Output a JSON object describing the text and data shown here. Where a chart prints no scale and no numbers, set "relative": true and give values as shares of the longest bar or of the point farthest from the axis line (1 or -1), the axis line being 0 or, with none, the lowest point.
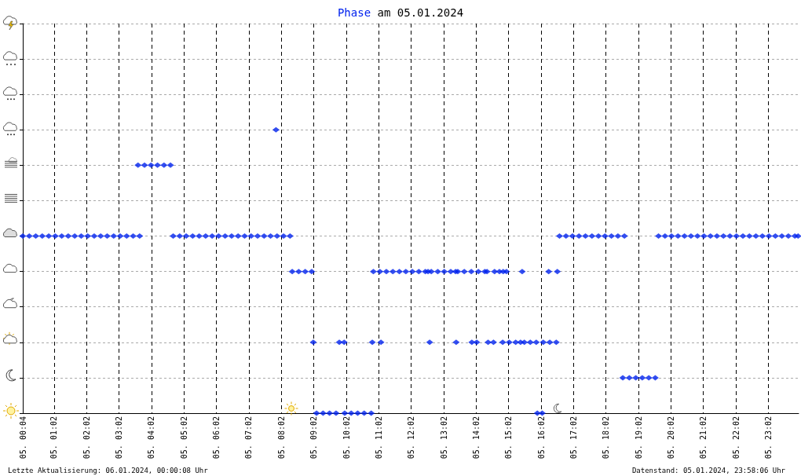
{
  "chart_data": {
    "type": "scatter",
    "title": "Phase am 05.01.2024",
    "annotations": [
      "Letzte Aktualisierung: 06.01.2024, 00:00:08 Uhr",
      "Datenstand: 05.01.2024, 23:58:06 Uhr"
    ],
    "x": [
      "2024-01-05T00:04",
      "2024-01-05T00:16",
      "2024-01-05T00:28",
      "2024-01-05T00:40",
      "2024-01-05T00:52",
      "2024-01-05T01:04",
      "2024-01-05T01:16",
      "2024-01-05T01:28",
      "2024-01-05T01:40",
      "2024-01-05T01:52",
      "2024-01-05T02:04",
      "2024-01-05T02:16",
      "2024-01-05T02:28",
      "2024-01-05T02:40",
      "2024-01-05T02:52",
      "2024-01-05T03:04",
      "2024-01-05T03:16",
      "2024-01-05T03:28",
      "2024-01-05T03:40",
      "2024-01-05T03:37",
      "2024-01-05T03:49",
      "2024-01-05T04:01",
      "2024-01-05T04:13",
      "2024-01-05T04:25",
      "2024-01-05T04:37",
      "2024-01-05T04:42",
      "2024-01-05T04:54",
      "2024-01-05T05:06",
      "2024-01-05T05:18",
      "2024-01-05T05:30",
      "2024-01-05T05:42",
      "2024-01-05T05:54",
      "2024-01-05T06:06",
      "2024-01-05T06:18",
      "2024-01-05T06:30",
      "2024-01-05T06:42",
      "2024-01-05T06:54",
      "2024-01-05T07:06",
      "2024-01-05T07:18",
      "2024-01-05T07:30",
      "2024-01-05T07:42",
      "2024-01-05T07:54",
      "2024-01-05T08:06",
      "2024-01-05T08:18",
      "2024-01-05T07:52",
      "2024-01-05T08:22",
      "2024-01-05T08:34",
      "2024-01-05T08:46",
      "2024-01-05T08:58",
      "2024-01-05T09:01",
      "2024-01-05T09:07",
      "2024-01-05T09:19",
      "2024-01-05T09:31",
      "2024-01-05T09:43",
      "2024-01-05T09:49",
      "2024-01-05T09:58",
      "2024-01-05T09:59",
      "2024-01-05T10:11",
      "2024-01-05T10:23",
      "2024-01-05T10:35",
      "2024-01-05T10:48",
      "2024-01-05T10:50",
      "2024-01-05T11:06",
      "2024-01-05T10:52",
      "2024-01-05T11:04",
      "2024-01-05T11:16",
      "2024-01-05T11:28",
      "2024-01-05T11:40",
      "2024-01-05T11:52",
      "2024-01-05T12:04",
      "2024-01-05T12:16",
      "2024-01-05T12:28",
      "2024-01-05T12:33",
      "2024-01-05T12:36",
      "2024-01-05T12:39",
      "2024-01-05T12:51",
      "2024-01-05T13:03",
      "2024-01-05T13:15",
      "2024-01-05T13:24",
      "2024-01-05T13:25",
      "2024-01-05T13:28",
      "2024-01-05T13:40",
      "2024-01-05T13:53",
      "2024-01-05T13:54",
      "2024-01-05T14:03",
      "2024-01-05T14:06",
      "2024-01-05T14:18",
      "2024-01-05T14:22",
      "2024-01-05T14:24",
      "2024-01-05T14:34",
      "2024-01-05T14:36",
      "2024-01-05T14:45",
      "2024-01-05T14:52",
      "2024-01-05T14:58",
      "2024-01-05T14:51",
      "2024-01-05T15:03",
      "2024-01-05T15:15",
      "2024-01-05T15:24",
      "2024-01-05T15:27",
      "2024-01-05T15:31",
      "2024-01-05T15:42",
      "2024-01-05T15:53",
      "2024-01-05T15:55",
      "2024-01-05T16:04",
      "2024-01-05T16:06",
      "2024-01-05T16:18",
      "2024-01-05T16:30",
      "2024-01-05T16:16",
      "2024-01-05T16:32",
      "2024-01-05T16:36",
      "2024-01-05T16:48",
      "2024-01-05T17:00",
      "2024-01-05T17:12",
      "2024-01-05T17:24",
      "2024-01-05T17:36",
      "2024-01-05T17:48",
      "2024-01-05T18:00",
      "2024-01-05T18:12",
      "2024-01-05T18:24",
      "2024-01-05T18:36",
      "2024-01-05T18:33",
      "2024-01-05T18:45",
      "2024-01-05T18:57",
      "2024-01-05T19:09",
      "2024-01-05T19:21",
      "2024-01-05T19:33",
      "2024-01-05T19:39",
      "2024-01-05T19:51",
      "2024-01-05T20:03",
      "2024-01-05T20:15",
      "2024-01-05T20:27",
      "2024-01-05T20:39",
      "2024-01-05T20:51",
      "2024-01-05T21:03",
      "2024-01-05T21:15",
      "2024-01-05T21:27",
      "2024-01-05T21:39",
      "2024-01-05T21:51",
      "2024-01-05T22:03",
      "2024-01-05T22:15",
      "2024-01-05T22:27",
      "2024-01-05T22:39",
      "2024-01-05T22:51",
      "2024-01-05T23:03",
      "2024-01-05T23:15",
      "2024-01-05T23:27",
      "2024-01-05T23:39",
      "2024-01-05T23:51",
      "2024-01-05T23:57"
    ],
    "values": [
      0.625,
      0.625,
      0.625,
      0.625,
      0.625,
      0.625,
      0.625,
      0.625,
      0.625,
      0.625,
      0.625,
      0.625,
      0.625,
      0.625,
      0.625,
      0.625,
      0.625,
      0.625,
      0.625,
      0.875,
      0.875,
      0.875,
      0.875,
      0.875,
      0.875,
      0.625,
      0.625,
      0.625,
      0.625,
      0.625,
      0.625,
      0.625,
      0.625,
      0.625,
      0.625,
      0.625,
      0.625,
      0.625,
      0.625,
      0.625,
      0.625,
      0.625,
      0.625,
      0.625,
      1,
      0.5,
      0.5,
      0.5,
      0.5,
      0.25,
      0,
      0,
      0,
      0,
      0.25,
      0.25,
      0,
      0,
      0,
      0,
      0,
      0.25,
      0.25,
      0.5,
      0.5,
      0.5,
      0.5,
      0.5,
      0.5,
      0.5,
      0.5,
      0.5,
      0.5,
      0.25,
      0.5,
      0.5,
      0.5,
      0.5,
      0.5,
      0.25,
      0.5,
      0.5,
      0.5,
      0.25,
      0.25,
      0.5,
      0.5,
      0.5,
      0.25,
      0.25,
      0.5,
      0.5,
      0.5,
      0.5,
      0.25,
      0.25,
      0.25,
      0.25,
      0.5,
      0.25,
      0.25,
      0.25,
      0,
      0,
      0.25,
      0.25,
      0.25,
      0.5,
      0.5,
      0.625,
      0.625,
      0.625,
      0.625,
      0.625,
      0.625,
      0.625,
      0.625,
      0.625,
      0.625,
      0.625,
      0.125,
      0.125,
      0.125,
      0.125,
      0.125,
      0.125,
      0.625,
      0.625,
      0.625,
      0.625,
      0.625,
      0.625,
      0.625,
      0.625,
      0.625,
      0.625,
      0.625,
      0.625,
      0.625,
      0.625,
      0.625,
      0.625,
      0.625,
      0.625,
      0.625,
      0.625,
      0.625,
      0.625,
      0.625
    ],
    "relative": true,
    "color": "#0022ee",
    "marker": "diamond",
    "grid": true,
    "xlim": [
      "2024-01-05T00:04",
      "2024-01-05T23:58"
    ],
    "xticks": [
      {
        "value": "2024-01-05T00:04",
        "label": "05. 00:04"
      },
      {
        "value": "2024-01-05T01:02",
        "label": "05. 01:02"
      },
      {
        "value": "2024-01-05T02:02",
        "label": "05. 02:02"
      },
      {
        "value": "2024-01-05T03:02",
        "label": "05. 03:02"
      },
      {
        "value": "2024-01-05T04:02",
        "label": "05. 04:02"
      },
      {
        "value": "2024-01-05T05:02",
        "label": "05. 05:02"
      },
      {
        "value": "2024-01-05T06:02",
        "label": "05. 06:02"
      },
      {
        "value": "2024-01-05T07:02",
        "label": "05. 07:02"
      },
      {
        "value": "2024-01-05T08:02",
        "label": "05. 08:02"
      },
      {
        "value": "2024-01-05T09:02",
        "label": "05. 09:02"
      },
      {
        "value": "2024-01-05T10:02",
        "label": "05. 10:02"
      },
      {
        "value": "2024-01-05T11:02",
        "label": "05. 11:02"
      },
      {
        "value": "2024-01-05T12:02",
        "label": "05. 12:02"
      },
      {
        "value": "2024-01-05T13:02",
        "label": "05. 13:02"
      },
      {
        "value": "2024-01-05T14:02",
        "label": "05. 14:02"
      },
      {
        "value": "2024-01-05T15:02",
        "label": "05. 15:02"
      },
      {
        "value": "2024-01-05T16:02",
        "label": "05. 16:02"
      },
      {
        "value": "2024-01-05T17:02",
        "label": "05. 17:02"
      },
      {
        "value": "2024-01-05T18:02",
        "label": "05. 18:02"
      },
      {
        "value": "2024-01-05T19:02",
        "label": "05. 19:02"
      },
      {
        "value": "2024-01-05T20:02",
        "label": "05. 20:02"
      },
      {
        "value": "2024-01-05T21:02",
        "label": "05. 21:02"
      },
      {
        "value": "2024-01-05T22:02",
        "label": "05. 22:02"
      },
      {
        "value": "2024-01-05T23:02",
        "label": "05. 23:02"
      }
    ]
  }
}
